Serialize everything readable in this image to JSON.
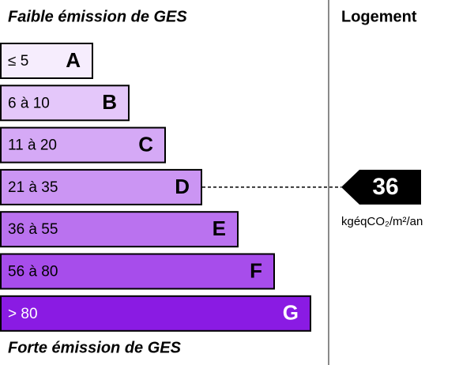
{
  "header": {
    "top_label": "Faible émission de GES",
    "bottom_label": "Forte émission de GES",
    "column_title": "Logement"
  },
  "classes": [
    {
      "range": "≤ 5",
      "letter": "A",
      "color": "#f6edfd"
    },
    {
      "range": "6 à 10",
      "letter": "B",
      "color": "#e4c7fa"
    },
    {
      "range": "11 à 20",
      "letter": "C",
      "color": "#d5a9f6"
    },
    {
      "range": "21 à 35",
      "letter": "D",
      "color": "#cb95f3"
    },
    {
      "range": "36 à 55",
      "letter": "E",
      "color": "#ba72ef"
    },
    {
      "range": "56 à 80",
      "letter": "F",
      "color": "#a74deb"
    },
    {
      "range": "> 80",
      "letter": "G",
      "color": "#8a1be3"
    }
  ],
  "indicator": {
    "value": 36,
    "unit": "kgéqCO₂/m²/an"
  }
}
